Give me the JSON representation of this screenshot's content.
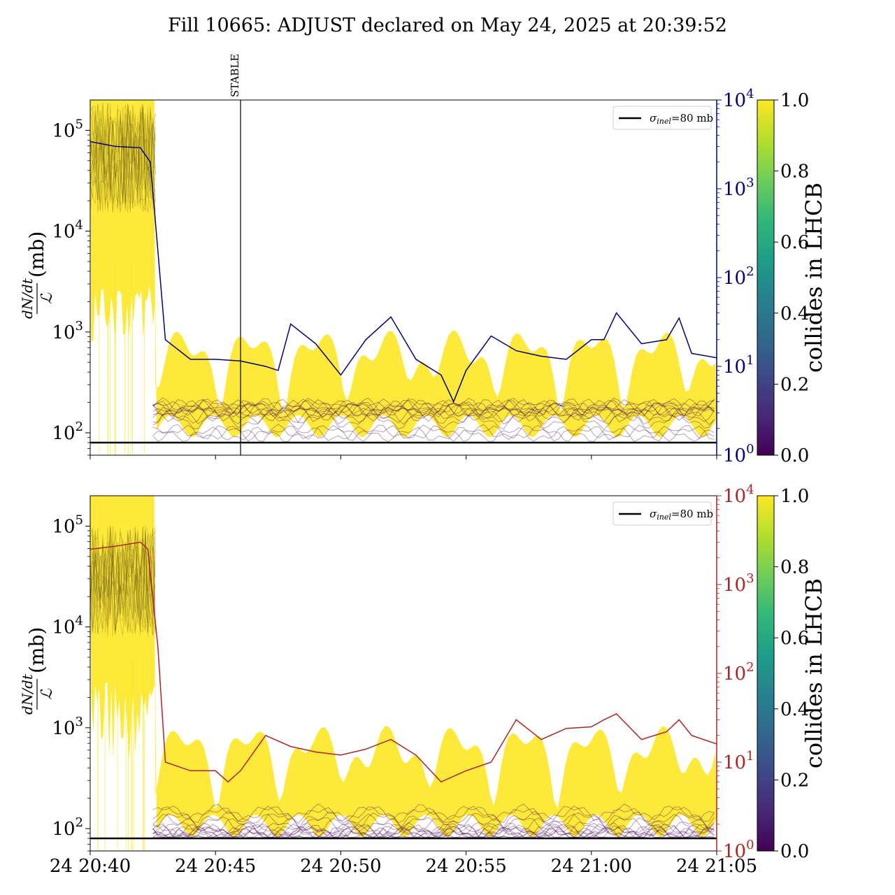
{
  "title": "Fill 10665: ADJUST declared on May 24, 2025 at 20:39:52",
  "colors": {
    "viridis_stops": [
      "#440154",
      "#482878",
      "#3e4989",
      "#31688e",
      "#26828e",
      "#1f9e89",
      "#35b779",
      "#6ece58",
      "#b5de2b",
      "#fde725"
    ],
    "top_right_axis": "#000080",
    "bottom_right_axis": "#b22222",
    "sigma_line": "#000000"
  },
  "chart_data": [
    {
      "type": "line",
      "panel": "top",
      "ylabel": "dN/dt / ℒ (mb)",
      "yscale": "log",
      "ylim": [
        60,
        200000
      ],
      "yticks": [
        {
          "value": 100,
          "label": "10^2"
        },
        {
          "value": 1000,
          "label": "10^3"
        },
        {
          "value": 10000,
          "label": "10^4"
        },
        {
          "value": 100000,
          "label": "10^5"
        }
      ],
      "right_axis": {
        "scale": "log",
        "ylim": [
          1,
          10000
        ],
        "color": "#000080",
        "ticks": [
          {
            "value": 1,
            "label": "10^0"
          },
          {
            "value": 10,
            "label": "10^1"
          },
          {
            "value": 100,
            "label": "10^2"
          },
          {
            "value": 1000,
            "label": "10^3"
          },
          {
            "value": 10000,
            "label": "10^4"
          }
        ]
      },
      "xlim": [
        "20:40",
        "21:05"
      ],
      "xticks": [],
      "vline": {
        "x": "20:46",
        "label": "STABLE"
      },
      "hline": {
        "y": 80,
        "legend": "σinel=80 mb"
      },
      "legend": {
        "entries": [
          {
            "label_main": "σ",
            "label_sub": "inel",
            "label_rest": "=80 mb"
          }
        ],
        "position": "top-right"
      },
      "colorbar": {
        "label": "collides in LHCB",
        "range": [
          0,
          1
        ],
        "ticks": [
          "0.0",
          "0.2",
          "0.4",
          "0.6",
          "0.8",
          "1.0"
        ]
      },
      "bands": {
        "colliding": {
          "color_value": 1.0,
          "before_pre": [
            15000,
            200000
          ],
          "before": [
            1000,
            200000
          ],
          "after": [
            120,
            600
          ]
        },
        "non_colliding": {
          "color_value": 0.0,
          "range": [
            85,
            200
          ]
        }
      },
      "right_series": {
        "name": "",
        "color": "#000080",
        "points": [
          [
            "20:40",
            3400
          ],
          [
            "20:41",
            3000
          ],
          [
            "20:42",
            2900
          ],
          [
            "20:42.4",
            2000
          ],
          [
            "20:42.7",
            200
          ],
          [
            "20:43",
            20
          ],
          [
            "20:44",
            12
          ],
          [
            "20:45",
            12
          ],
          [
            "20:46",
            11.5
          ],
          [
            "20:47",
            10
          ],
          [
            "20:47.5",
            9
          ],
          [
            "20:48",
            30
          ],
          [
            "20:49",
            18
          ],
          [
            "20:50",
            8
          ],
          [
            "20:51",
            20
          ],
          [
            "20:52",
            36
          ],
          [
            "20:53",
            12
          ],
          [
            "20:54",
            8
          ],
          [
            "20:54.5",
            4
          ],
          [
            "20:55",
            9
          ],
          [
            "20:56",
            22
          ],
          [
            "20:57",
            15
          ],
          [
            "20:58",
            13
          ],
          [
            "20:59",
            12
          ],
          [
            "21:00",
            20
          ],
          [
            "21:00.5",
            20
          ],
          [
            "21:01",
            40
          ],
          [
            "21:02",
            18
          ],
          [
            "21:03",
            20
          ],
          [
            "21:03.5",
            35
          ],
          [
            "21:04",
            14
          ],
          [
            "21:05",
            12.5
          ]
        ]
      }
    },
    {
      "type": "line",
      "panel": "bottom",
      "ylabel": "dN/dt / ℒ (mb)",
      "yscale": "log",
      "ylim": [
        60,
        200000
      ],
      "yticks": [
        {
          "value": 100,
          "label": "10^2"
        },
        {
          "value": 1000,
          "label": "10^3"
        },
        {
          "value": 10000,
          "label": "10^4"
        },
        {
          "value": 100000,
          "label": "10^5"
        }
      ],
      "right_axis": {
        "scale": "log",
        "ylim": [
          1,
          10000
        ],
        "color": "#b22222",
        "ticks": [
          {
            "value": 1,
            "label": "10^0"
          },
          {
            "value": 10,
            "label": "10^1"
          },
          {
            "value": 100,
            "label": "10^2"
          },
          {
            "value": 1000,
            "label": "10^3"
          },
          {
            "value": 10000,
            "label": "10^4"
          }
        ]
      },
      "xlim": [
        "20:40",
        "21:05"
      ],
      "xticks": [
        "24 20:40",
        "24 20:45",
        "24 20:50",
        "24 20:55",
        "24 21:00",
        "24 21:05"
      ],
      "hline": {
        "y": 80,
        "legend": "σinel=80 mb"
      },
      "legend": {
        "entries": [
          {
            "label_main": "σ",
            "label_sub": "inel",
            "label_rest": "=80 mb"
          }
        ],
        "position": "top-right"
      },
      "colorbar": {
        "label": "collides in LHCB",
        "range": [
          0,
          1
        ],
        "ticks": [
          "0.0",
          "0.2",
          "0.4",
          "0.6",
          "0.8",
          "1.0"
        ]
      },
      "bands": {
        "colliding": {
          "color_value": 1.0,
          "before_pre": [
            8000,
            200000
          ],
          "before": [
            1000,
            200000
          ],
          "after": [
            110,
            600
          ]
        },
        "non_colliding": {
          "color_value": 0.0,
          "range": [
            82,
            150
          ]
        }
      },
      "right_series": {
        "name": "",
        "color": "#b22222",
        "points": [
          [
            "20:40",
            2500
          ],
          [
            "20:41",
            2700
          ],
          [
            "20:42",
            3000
          ],
          [
            "20:42.3",
            2500
          ],
          [
            "20:42.7",
            200
          ],
          [
            "20:43",
            10
          ],
          [
            "20:44",
            8
          ],
          [
            "20:45",
            8
          ],
          [
            "20:45.5",
            6
          ],
          [
            "20:46",
            8
          ],
          [
            "20:47",
            20
          ],
          [
            "20:48",
            15
          ],
          [
            "20:49",
            13
          ],
          [
            "20:50",
            12
          ],
          [
            "20:51",
            14
          ],
          [
            "20:52",
            18
          ],
          [
            "20:53",
            12
          ],
          [
            "20:54",
            6
          ],
          [
            "20:55",
            8
          ],
          [
            "20:56",
            10
          ],
          [
            "20:57",
            30
          ],
          [
            "20:58",
            18
          ],
          [
            "20:59",
            24
          ],
          [
            "21:00",
            25
          ],
          [
            "21:00.5",
            30
          ],
          [
            "21:01",
            35
          ],
          [
            "21:02",
            18
          ],
          [
            "21:03",
            22
          ],
          [
            "21:03.5",
            30
          ],
          [
            "21:04",
            20
          ],
          [
            "21:05",
            16
          ]
        ]
      }
    }
  ]
}
